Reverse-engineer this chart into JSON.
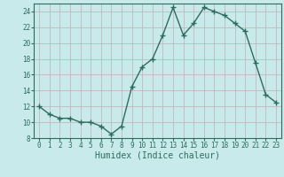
{
  "x": [
    0,
    1,
    2,
    3,
    4,
    5,
    6,
    7,
    8,
    9,
    10,
    11,
    12,
    13,
    14,
    15,
    16,
    17,
    18,
    19,
    20,
    21,
    22,
    23
  ],
  "y": [
    12,
    11,
    10.5,
    10.5,
    10,
    10,
    9.5,
    8.5,
    9.5,
    14.5,
    17,
    18,
    21,
    24.5,
    21,
    22.5,
    24.5,
    24,
    23.5,
    22.5,
    21.5,
    17.5,
    13.5,
    12.5
  ],
  "line_color": "#2e6b5e",
  "marker": "+",
  "marker_size": 4,
  "linewidth": 1.0,
  "bg_color": "#c8eaea",
  "grid_color": "#c0b8c0",
  "xlabel": "Humidex (Indice chaleur)",
  "xlim": [
    -0.5,
    23.5
  ],
  "ylim": [
    8,
    25
  ],
  "yticks": [
    8,
    10,
    12,
    14,
    16,
    18,
    20,
    22,
    24
  ],
  "xticks": [
    0,
    1,
    2,
    3,
    4,
    5,
    6,
    7,
    8,
    9,
    10,
    11,
    12,
    13,
    14,
    15,
    16,
    17,
    18,
    19,
    20,
    21,
    22,
    23
  ],
  "tick_label_fontsize": 5.5,
  "xlabel_fontsize": 7,
  "tick_color": "#2e6b5e",
  "axis_color": "#2e6b5e"
}
